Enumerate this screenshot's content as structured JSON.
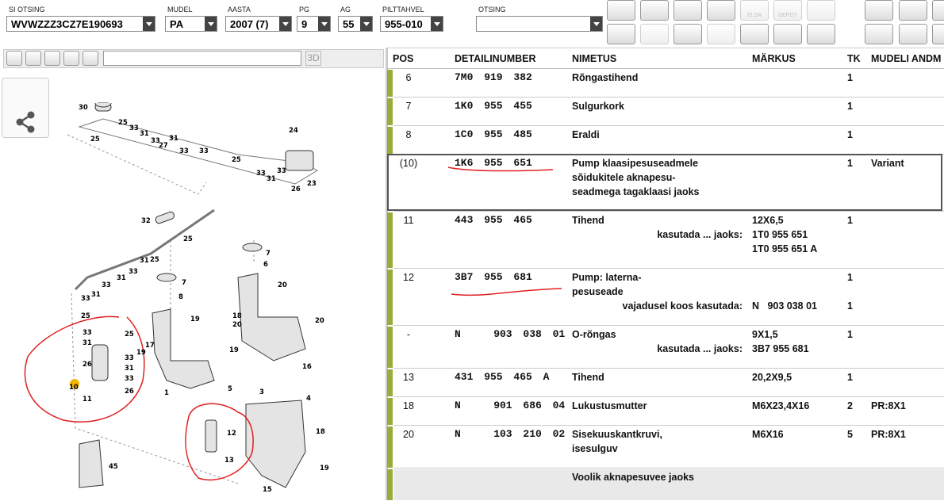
{
  "filters": [
    {
      "label": "SI OTSING",
      "value": "WVWZZZ3CZ7E190693"
    },
    {
      "label": "MUDEL",
      "value": "PA"
    },
    {
      "label": "AASTA",
      "value": "2007 (7)"
    },
    {
      "label": "PG",
      "value": "9"
    },
    {
      "label": "AG",
      "value": "55"
    },
    {
      "label": "PILTTAHVEL",
      "value": "955-010"
    },
    {
      "label": "OTSING"
    }
  ],
  "toolbar": {
    "elsa": "ELSA",
    "depot": "DEPOT"
  },
  "viewer": {
    "button_3d": "3D"
  },
  "diagram": {
    "callouts": [
      "30",
      "25",
      "33",
      "31",
      "33",
      "27",
      "31",
      "33",
      "33",
      "25",
      "33",
      "31",
      "33",
      "26",
      "23",
      "24",
      "25",
      "32",
      "25",
      "31",
      "25",
      "33",
      "31",
      "33",
      "31",
      "33",
      "25",
      "33",
      "31",
      "26",
      "25",
      "33",
      "31",
      "33",
      "26",
      "10",
      "11",
      "19",
      "17",
      "1",
      "7",
      "8",
      "19",
      "7",
      "6",
      "20",
      "18",
      "20",
      "19",
      "20",
      "16",
      "5",
      "3",
      "4",
      "12",
      "13",
      "18",
      "19",
      "45",
      "15"
    ]
  },
  "table": {
    "headers": [
      "POS",
      "DETAILINUMBER",
      "NIMETUS",
      "MÄRKUS",
      "TK",
      "MUDELI ANDM"
    ],
    "rows": [
      {
        "pos": "6",
        "number": "7M0 919 382",
        "name": [
          "Rõngastihend"
        ],
        "qty": 1
      },
      {
        "pos": "7",
        "number": "1K0 955 455",
        "name": [
          "Sulgurkork"
        ],
        "qty": 1
      },
      {
        "pos": "8",
        "number": "1C0 955 485",
        "name": [
          "Eraldi"
        ],
        "qty": 1
      },
      {
        "pos": "(10)",
        "number": "1K6 955 651",
        "name": [
          "Pump klaasipesuseadmele",
          "sõidukitele aknapesu-",
          "seadmega tagaklaasi jaoks"
        ],
        "qty": 1,
        "model": "Variant"
      },
      {
        "pos": "11",
        "number": "443 955 465",
        "name": [
          "Tihend"
        ],
        "note": "12X6,5",
        "qty": 1,
        "sub": [
          {
            "label": "kasutada ... jaoks:",
            "value": "1T0 955 651"
          },
          {
            "value": "1T0 955 651 A"
          }
        ]
      },
      {
        "pos": "12",
        "number": "3B7 955 681",
        "name": [
          "Pump: laterna-",
          "pesuseade"
        ],
        "qty": 1,
        "sub": [
          {
            "label": "vajadusel koos kasutada:",
            "value": "N   903 038 01",
            "qty": 1
          }
        ]
      },
      {
        "pos": "-",
        "number": "N   903 038 01",
        "name": [
          "O-rõngas"
        ],
        "note": "9X1,5",
        "qty": 1,
        "sub": [
          {
            "label": "kasutada ... jaoks:",
            "value": "3B7 955 681"
          }
        ]
      },
      {
        "pos": "13",
        "number": "431 955 465 A",
        "name": [
          "Tihend"
        ],
        "note": "20,2X9,5",
        "qty": 1
      },
      {
        "pos": "18",
        "number": "N   901 686 04",
        "name": [
          "Lukustusmutter"
        ],
        "note": "M6X23,4X16",
        "qty": 2,
        "model": "PR:8X1"
      },
      {
        "pos": "20",
        "number": "N   103 210 02",
        "name": [
          "Sisekuuskantkruvi,",
          "isesulguv"
        ],
        "note": "M6X16",
        "qty": 5,
        "model": "PR:8X1"
      }
    ],
    "group": "Voolik aknapesuvee jaoks"
  }
}
